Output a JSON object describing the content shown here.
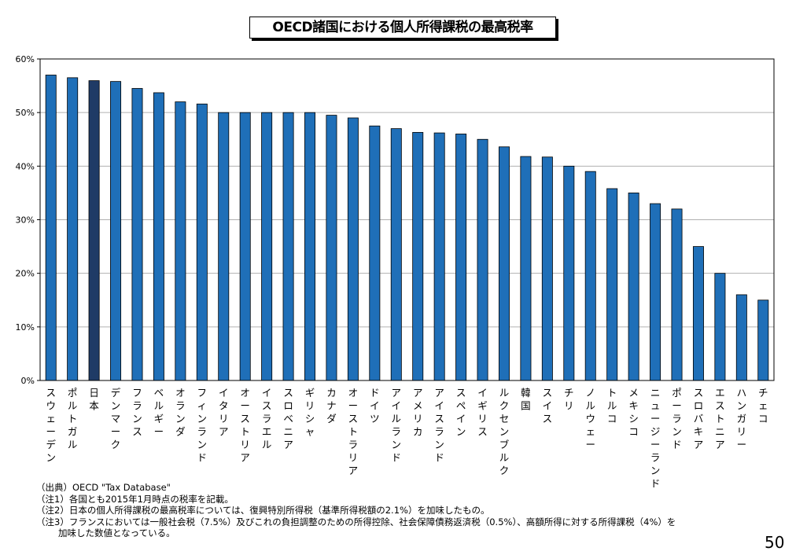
{
  "title": "OECD諸国における個人所得課税の最高税率",
  "chart_data": {
    "type": "bar",
    "title": "OECD諸国における個人所得課税の最高税率",
    "xlabel": "",
    "ylabel": "",
    "ylim": [
      0,
      60
    ],
    "yticks": [
      "0%",
      "10%",
      "20%",
      "30%",
      "40%",
      "50%",
      "60%"
    ],
    "grid": true,
    "categories": [
      "スウェーデン",
      "ポルトガル",
      "日本",
      "デンマーク",
      "フランス",
      "ベルギー",
      "オランダ",
      "フィンランド",
      "イタリア",
      "オーストリア",
      "イスラエル",
      "スロベニア",
      "ギリシャ",
      "カナダ",
      "オーストラリア",
      "ドイツ",
      "アイルランド",
      "アメリカ",
      "アイスランド",
      "スペイン",
      "イギリス",
      "ルクセンブルク",
      "韓国",
      "スイス",
      "チリ",
      "ノルウェー",
      "トルコ",
      "メキシコ",
      "ニュージーランド",
      "ポーランド",
      "スロバキア",
      "エストニア",
      "ハンガリー",
      "チェコ"
    ],
    "values": [
      57.0,
      56.5,
      55.95,
      55.8,
      54.5,
      53.7,
      52.0,
      51.6,
      50.0,
      50.0,
      50.0,
      50.0,
      50.0,
      49.5,
      49.0,
      47.5,
      47.0,
      46.3,
      46.2,
      46.0,
      45.0,
      43.6,
      41.8,
      41.7,
      40.0,
      39.0,
      35.8,
      35.0,
      33.0,
      32.0,
      25.0,
      20.0,
      16.0,
      15.0
    ],
    "colors": {
      "default": "#1f6fb8",
      "highlight": "#1f3b66",
      "grid": "#b0b0b0",
      "axis": "#000000"
    },
    "highlight_category": "日本"
  },
  "notes": [
    "（出典）OECD \"Tax Database\"",
    "（注1）各国とも2015年1月時点の税率を記載。",
    "（注2）日本の個人所得課税の最高税率については、復興特別所得税（基準所得税額の2.1%）を加味したもの。",
    "（注3）フランスにおいては一般社会税（7.5%）及びこれの負担調整のための所得控除、社会保障債務返済税（0.5%）、高額所得に対する所得課税（4%）を",
    "加味した数値となっている。"
  ],
  "page_number": "50"
}
